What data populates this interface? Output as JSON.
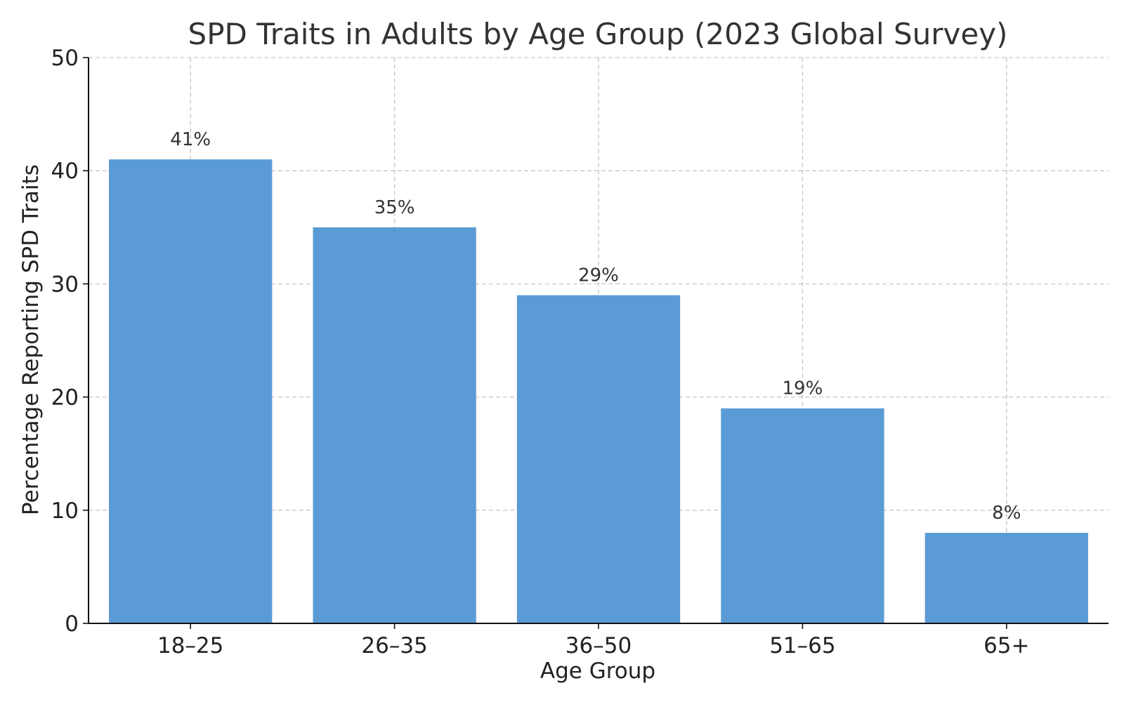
{
  "chart_data": {
    "type": "bar",
    "title": "SPD Traits in Adults by Age Group (2023 Global Survey)",
    "xlabel": "Age Group",
    "ylabel": "Percentage Reporting SPD Traits",
    "categories": [
      "18–25",
      "26–35",
      "36–50",
      "51–65",
      "65+"
    ],
    "values": [
      41,
      35,
      29,
      19,
      8
    ],
    "data_labels": [
      "41%",
      "35%",
      "29%",
      "19%",
      "8%"
    ],
    "ylim": [
      0,
      50
    ],
    "yticks": [
      0,
      10,
      20,
      30,
      40,
      50
    ],
    "ytick_labels": [
      "0",
      "10",
      "20",
      "30",
      "40",
      "50"
    ],
    "grid": true,
    "bar_color": "#5b9bd5"
  }
}
